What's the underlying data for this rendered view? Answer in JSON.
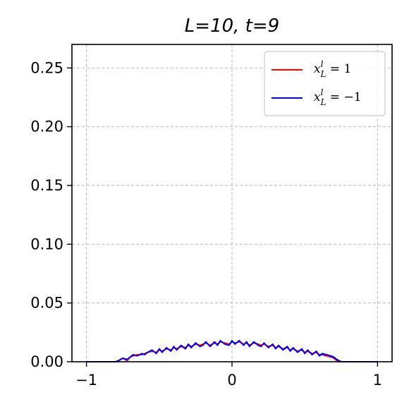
{
  "chart_data": {
    "type": "line",
    "title": "L=10, t=9",
    "xlabel": "",
    "ylabel": "",
    "xlim": [
      -1.1,
      1.1
    ],
    "ylim": [
      0,
      0.27
    ],
    "xticks": [
      -1,
      0,
      1
    ],
    "xtick_labels": [
      "−1",
      "0",
      "1"
    ],
    "yticks": [
      0,
      0.05,
      0.1,
      0.15,
      0.2,
      0.25
    ],
    "ytick_labels": [
      "0.00",
      "0.05",
      "0.10",
      "0.15",
      "0.20",
      "0.25"
    ],
    "grid": true,
    "legend_position": "top-right",
    "series": [
      {
        "name": "x_L^l = 1",
        "color": "#ff0000",
        "x": [
          -1.0,
          -0.8,
          -0.78,
          -0.75,
          -0.72,
          -0.7,
          -0.68,
          -0.65,
          -0.62,
          -0.6,
          -0.58,
          -0.55,
          -0.52,
          -0.5,
          -0.48,
          -0.45,
          -0.42,
          -0.4,
          -0.38,
          -0.35,
          -0.32,
          -0.3,
          -0.28,
          -0.25,
          -0.22,
          -0.2,
          -0.18,
          -0.15,
          -0.12,
          -0.1,
          -0.08,
          -0.05,
          -0.02,
          0.0,
          0.02,
          0.05,
          0.08,
          0.1,
          0.12,
          0.15,
          0.18,
          0.2,
          0.22,
          0.25,
          0.28,
          0.3,
          0.32,
          0.35,
          0.38,
          0.4,
          0.42,
          0.45,
          0.48,
          0.5,
          0.52,
          0.55,
          0.58,
          0.6,
          0.62,
          0.65,
          0.68,
          0.7,
          0.72,
          0.75,
          0.78,
          0.8,
          1.0
        ],
        "y": [
          0.0,
          0.0,
          0.001,
          0.003,
          0.001,
          0.004,
          0.005,
          0.006,
          0.006,
          0.007,
          0.008,
          0.009,
          0.008,
          0.01,
          0.009,
          0.011,
          0.01,
          0.012,
          0.011,
          0.013,
          0.012,
          0.014,
          0.013,
          0.015,
          0.014,
          0.015,
          0.016,
          0.014,
          0.016,
          0.015,
          0.017,
          0.016,
          0.015,
          0.017,
          0.016,
          0.017,
          0.015,
          0.016,
          0.014,
          0.016,
          0.015,
          0.014,
          0.015,
          0.013,
          0.014,
          0.012,
          0.013,
          0.011,
          0.012,
          0.01,
          0.011,
          0.009,
          0.01,
          0.008,
          0.009,
          0.007,
          0.008,
          0.006,
          0.006,
          0.005,
          0.004,
          0.003,
          0.001,
          0.0,
          0.0,
          0.0,
          0.0
        ]
      },
      {
        "name": "x_L^l = −1",
        "color": "#0000ff",
        "x": [
          -1.0,
          -0.8,
          -0.78,
          -0.75,
          -0.72,
          -0.7,
          -0.68,
          -0.65,
          -0.62,
          -0.6,
          -0.58,
          -0.55,
          -0.52,
          -0.5,
          -0.48,
          -0.45,
          -0.42,
          -0.4,
          -0.38,
          -0.35,
          -0.32,
          -0.3,
          -0.28,
          -0.25,
          -0.22,
          -0.2,
          -0.18,
          -0.15,
          -0.12,
          -0.1,
          -0.08,
          -0.05,
          -0.02,
          0.0,
          0.02,
          0.05,
          0.08,
          0.1,
          0.12,
          0.15,
          0.18,
          0.2,
          0.22,
          0.25,
          0.28,
          0.3,
          0.32,
          0.35,
          0.38,
          0.4,
          0.42,
          0.45,
          0.48,
          0.5,
          0.52,
          0.55,
          0.58,
          0.6,
          0.62,
          0.65,
          0.68,
          0.7,
          0.72,
          0.75,
          0.78,
          0.8,
          1.0
        ],
        "y": [
          0.0,
          0.0,
          0.001,
          0.003,
          0.002,
          0.004,
          0.006,
          0.005,
          0.007,
          0.006,
          0.008,
          0.01,
          0.007,
          0.011,
          0.008,
          0.012,
          0.009,
          0.013,
          0.01,
          0.014,
          0.011,
          0.015,
          0.012,
          0.016,
          0.013,
          0.014,
          0.017,
          0.013,
          0.017,
          0.014,
          0.018,
          0.015,
          0.014,
          0.018,
          0.015,
          0.018,
          0.014,
          0.017,
          0.013,
          0.017,
          0.014,
          0.013,
          0.016,
          0.012,
          0.015,
          0.011,
          0.014,
          0.01,
          0.013,
          0.009,
          0.012,
          0.008,
          0.011,
          0.007,
          0.01,
          0.006,
          0.009,
          0.005,
          0.007,
          0.006,
          0.005,
          0.004,
          0.002,
          0.0,
          0.0,
          0.0,
          0.0
        ]
      }
    ]
  }
}
